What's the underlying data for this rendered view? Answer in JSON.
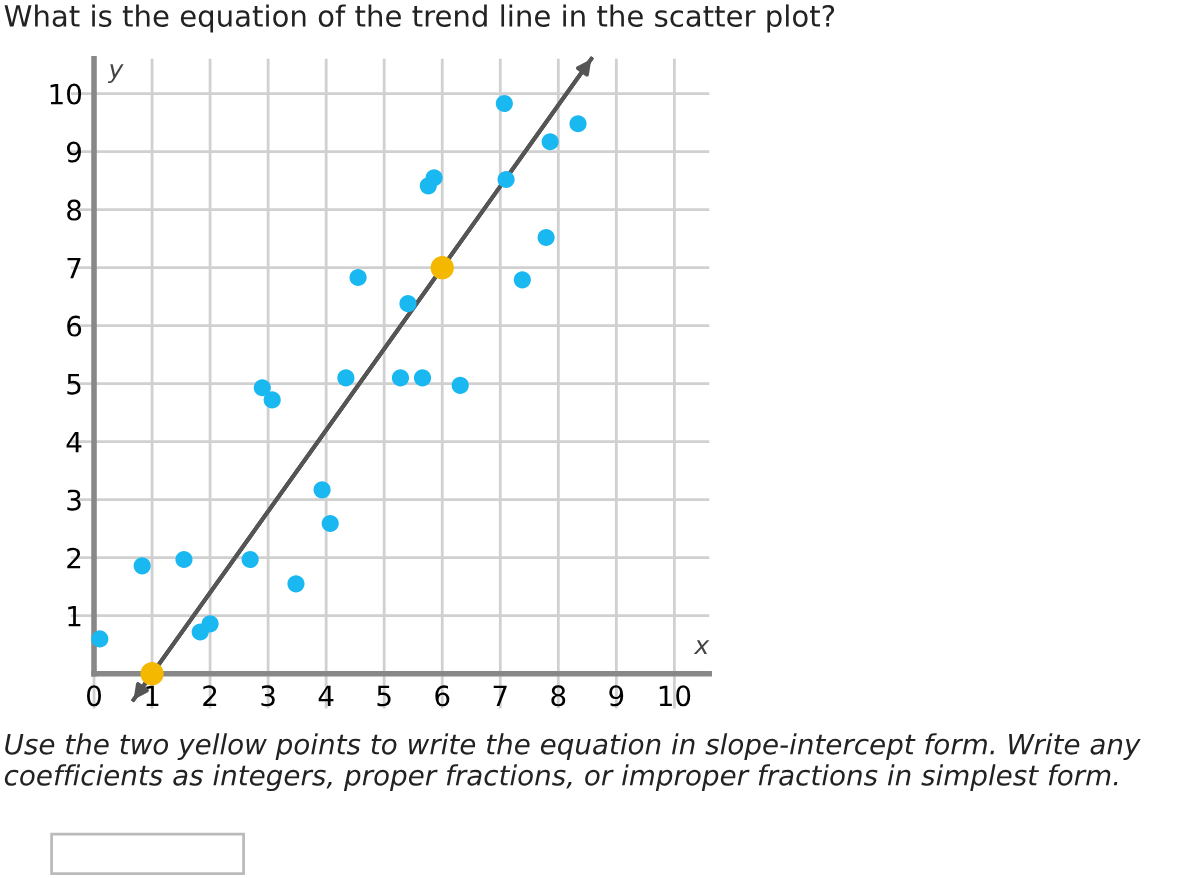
{
  "chart_data": {
    "type": "scatter",
    "title": "What is the equation of the trend line in the scatter plot?",
    "xlabel": "x",
    "ylabel": "y",
    "series": [
      {
        "marker": "circle",
        "color": "#1ab8f0",
        "x": [
          0.1,
          0.83,
          1.55,
          1.83,
          2.0,
          2.69,
          2.9,
          3.07,
          3.93,
          4.07,
          3.48,
          4.34,
          4.55,
          5.28,
          5.41,
          5.66,
          5.76,
          5.86,
          6.31,
          7.07,
          7.1,
          7.38,
          7.79,
          7.86,
          8.34
        ],
        "values": [
          0.6,
          1.86,
          1.97,
          0.72,
          0.86,
          1.97,
          4.93,
          4.72,
          3.17,
          2.59,
          1.55,
          5.1,
          6.83,
          5.1,
          6.38,
          5.1,
          8.41,
          8.55,
          4.97,
          9.83,
          8.52,
          6.79,
          7.52,
          9.17,
          9.48
        ]
      },
      {
        "type": "line",
        "color": "#555555",
        "x": [
          0.68,
          8.57
        ],
        "values": [
          -0.45,
          10.6
        ]
      },
      {
        "marker": "circle",
        "color": "#f5b800",
        "x": [
          1,
          6
        ],
        "values": [
          0,
          7
        ]
      }
    ],
    "xlim": [
      -0.4,
      10.6
    ],
    "ylim": [
      -0.6,
      10.6
    ],
    "xticks": [
      {
        "value": 0,
        "label": "0"
      },
      1,
      2,
      3,
      4,
      5,
      6,
      7,
      8,
      9,
      10
    ],
    "yticks": [
      1,
      2,
      3,
      4,
      5,
      6,
      7,
      8,
      9,
      10
    ],
    "grid": true,
    "annotations": [
      "Use the two yellow points to write the equation in slope-intercept form. Write any coefficients as integers, proper fractions, or improper fractions in simplest form."
    ]
  }
}
